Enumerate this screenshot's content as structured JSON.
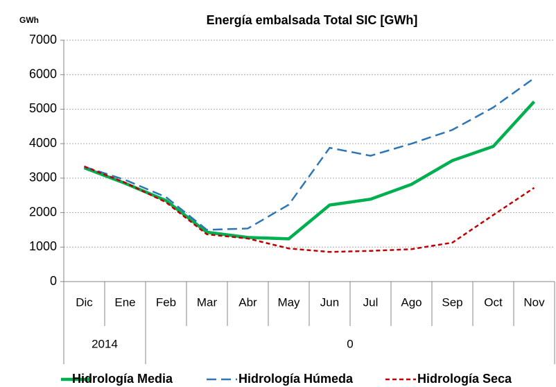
{
  "chart_data": {
    "type": "line",
    "title": "Energía embalsada Total SIC [GWh]",
    "y_label": "GWh",
    "categories": [
      "Dic",
      "Ene",
      "Feb",
      "Mar",
      "Abr",
      "May",
      "Jun",
      "Jul",
      "Ago",
      "Sep",
      "Oct",
      "Nov"
    ],
    "category_groups": [
      "2014",
      "2014",
      "0",
      "0",
      "0",
      "0",
      "0",
      "0",
      "0",
      "0",
      "0",
      "0"
    ],
    "series": [
      {
        "name": "Hidrología Media",
        "color": "#00b050",
        "dash": "solid",
        "values": [
          3300,
          2850,
          2350,
          1430,
          1280,
          1240,
          2220,
          2390,
          2820,
          3510,
          3920,
          5220
        ]
      },
      {
        "name": "Hidrología Húmeda",
        "color": "#2e75b6",
        "dash": "long",
        "values": [
          3330,
          2950,
          2450,
          1500,
          1540,
          2230,
          3880,
          3650,
          4000,
          4400,
          5050,
          5900
        ]
      },
      {
        "name": "Hidrología Seca",
        "color": "#c00000",
        "dash": "short",
        "values": [
          3340,
          2870,
          2300,
          1370,
          1250,
          960,
          860,
          890,
          940,
          1130,
          1930,
          2720
        ]
      }
    ],
    "ylim": [
      0,
      7000
    ],
    "yticks": [
      0,
      1000,
      2000,
      3000,
      4000,
      5000,
      6000,
      7000
    ],
    "grid": true,
    "legend": "bottom"
  }
}
